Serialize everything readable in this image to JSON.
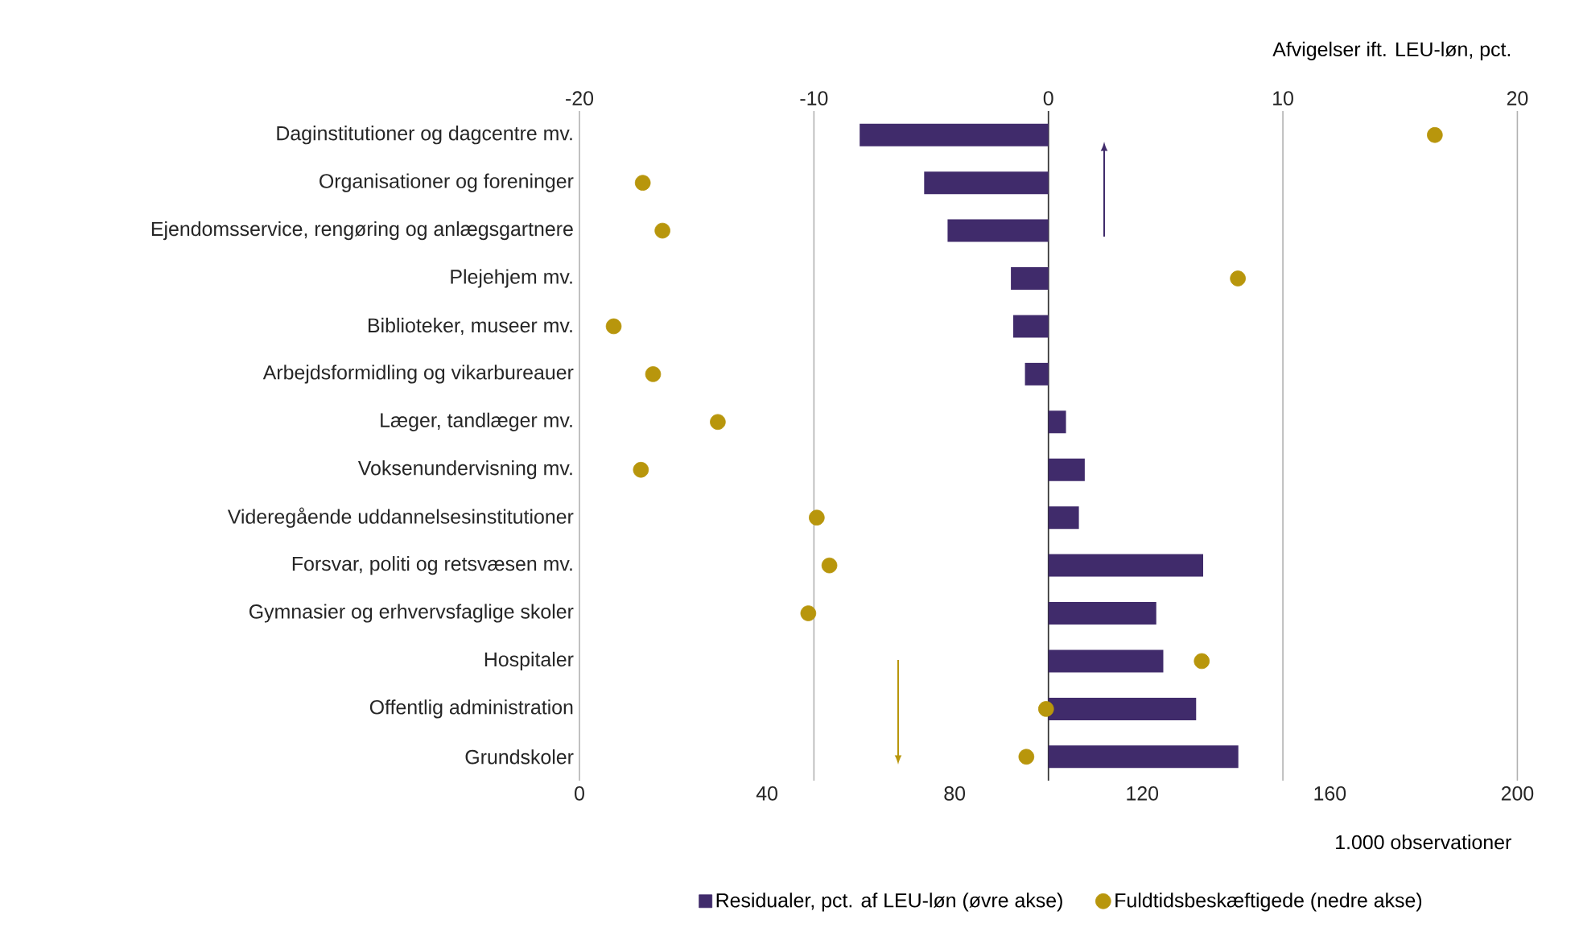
{
  "chart_data": {
    "type": "bar",
    "orientation": "horizontal",
    "xlabel": "1.000 observationer",
    "x2label": "Afvigelser ift. LEU-løn, pct.",
    "categories": [
      "Daginstitutioner og dagcentre mv.",
      "Organisationer og foreninger",
      "Ejendomsservice, rengøring og anlægsgartnere",
      "Plejehjem mv.",
      "Biblioteker, museer mv.",
      "Arbejdsformidling og vikarbureauer",
      "Læger, tandlæger mv.",
      "Voksenundervisning mv.",
      "Videregående uddannelsesinstitutioner",
      "Forsvar, politi og retsvæsen mv.",
      "Gymnasier og erhvervsfaglige skoler",
      "Hospitaler",
      "Offentlig administration",
      "Grundskoler"
    ],
    "xlim": [
      0,
      200
    ],
    "xticks": [
      0,
      40,
      80,
      120,
      160,
      200
    ],
    "x2lim": [
      -20,
      20
    ],
    "x2ticks": [
      -20,
      -10,
      0,
      10,
      20
    ],
    "grid": "x",
    "legend": "bottom",
    "series": [
      {
        "name": "Residualer, pct. af LEU-løn (øvre akse)",
        "axis": "x2",
        "color": "#402b6b",
        "values": [
          -8.05,
          -5.3,
          -4.3,
          -1.6,
          -1.5,
          -1.0,
          0.75,
          1.55,
          1.3,
          6.6,
          4.6,
          4.9,
          6.3,
          8.1
        ]
      },
      {
        "name": "Fuldtidsbeskæftigede (nedre akse)",
        "type": "scatter",
        "marker": "circle",
        "color": "#b8960c",
        "values": [
          182.4,
          13.5,
          17.7,
          140.4,
          7.3,
          15.7,
          29.5,
          13.1,
          50.6,
          53.3,
          48.8,
          132.7,
          99.5,
          95.3
        ]
      }
    ]
  }
}
